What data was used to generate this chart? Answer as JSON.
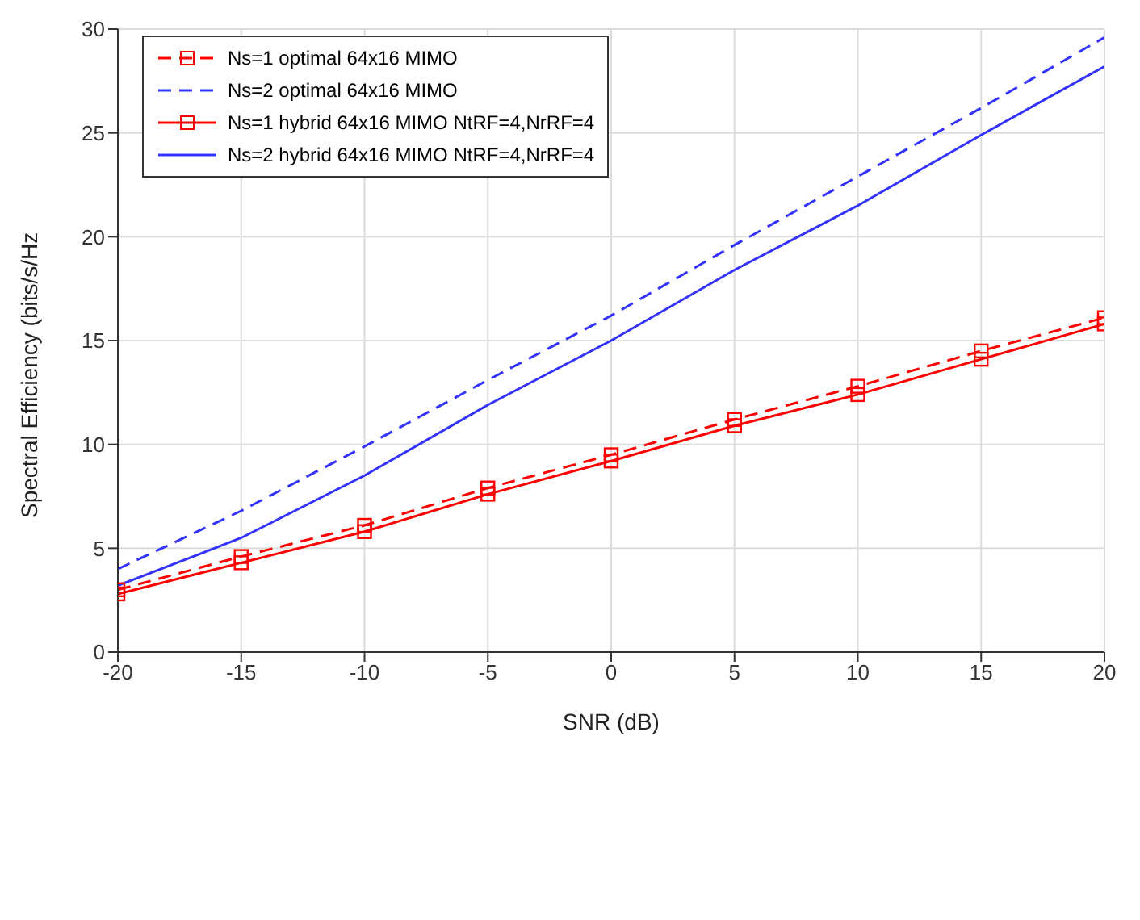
{
  "chart_data": {
    "type": "line",
    "xlabel": "SNR (dB)",
    "ylabel": "Spectral Efficiency (bits/s/Hz",
    "x": [
      -20,
      -15,
      -10,
      -5,
      0,
      5,
      10,
      15,
      20
    ],
    "series": [
      {
        "name": "Ns=1 optimal 64x16 MIMO",
        "color": "#ff0000",
        "marker": "square",
        "line_style": "dashed",
        "values": [
          3.0,
          4.6,
          6.1,
          7.9,
          9.5,
          11.2,
          12.8,
          14.5,
          16.1
        ]
      },
      {
        "name": "Ns=2 optimal 64x16 MIMO",
        "color": "#3333ff",
        "marker": "none",
        "line_style": "dashed",
        "values": [
          4.0,
          6.8,
          9.9,
          13.1,
          16.2,
          19.6,
          22.9,
          26.2,
          29.6
        ]
      },
      {
        "name": "Ns=1 hybrid 64x16 MIMO NtRF=4,NrRF=4",
        "color": "#ff0000",
        "marker": "square",
        "line_style": "solid",
        "values": [
          2.8,
          4.3,
          5.8,
          7.6,
          9.2,
          10.9,
          12.4,
          14.1,
          15.8
        ]
      },
      {
        "name": "Ns=2 hybrid 64x16 MIMO NtRF=4,NrRF=4",
        "color": "#3333ff",
        "marker": "none",
        "line_style": "solid",
        "values": [
          3.2,
          5.5,
          8.5,
          11.9,
          15.0,
          18.4,
          21.5,
          24.9,
          28.2
        ]
      }
    ],
    "xlim": [
      -20,
      20
    ],
    "xticks": [
      -20,
      -15,
      -10,
      -5,
      0,
      5,
      10,
      15,
      20
    ],
    "ylim": [
      0,
      30
    ],
    "yticks": [
      0,
      5,
      10,
      15,
      20,
      25,
      30
    ],
    "grid": true,
    "legend": "top left"
  }
}
